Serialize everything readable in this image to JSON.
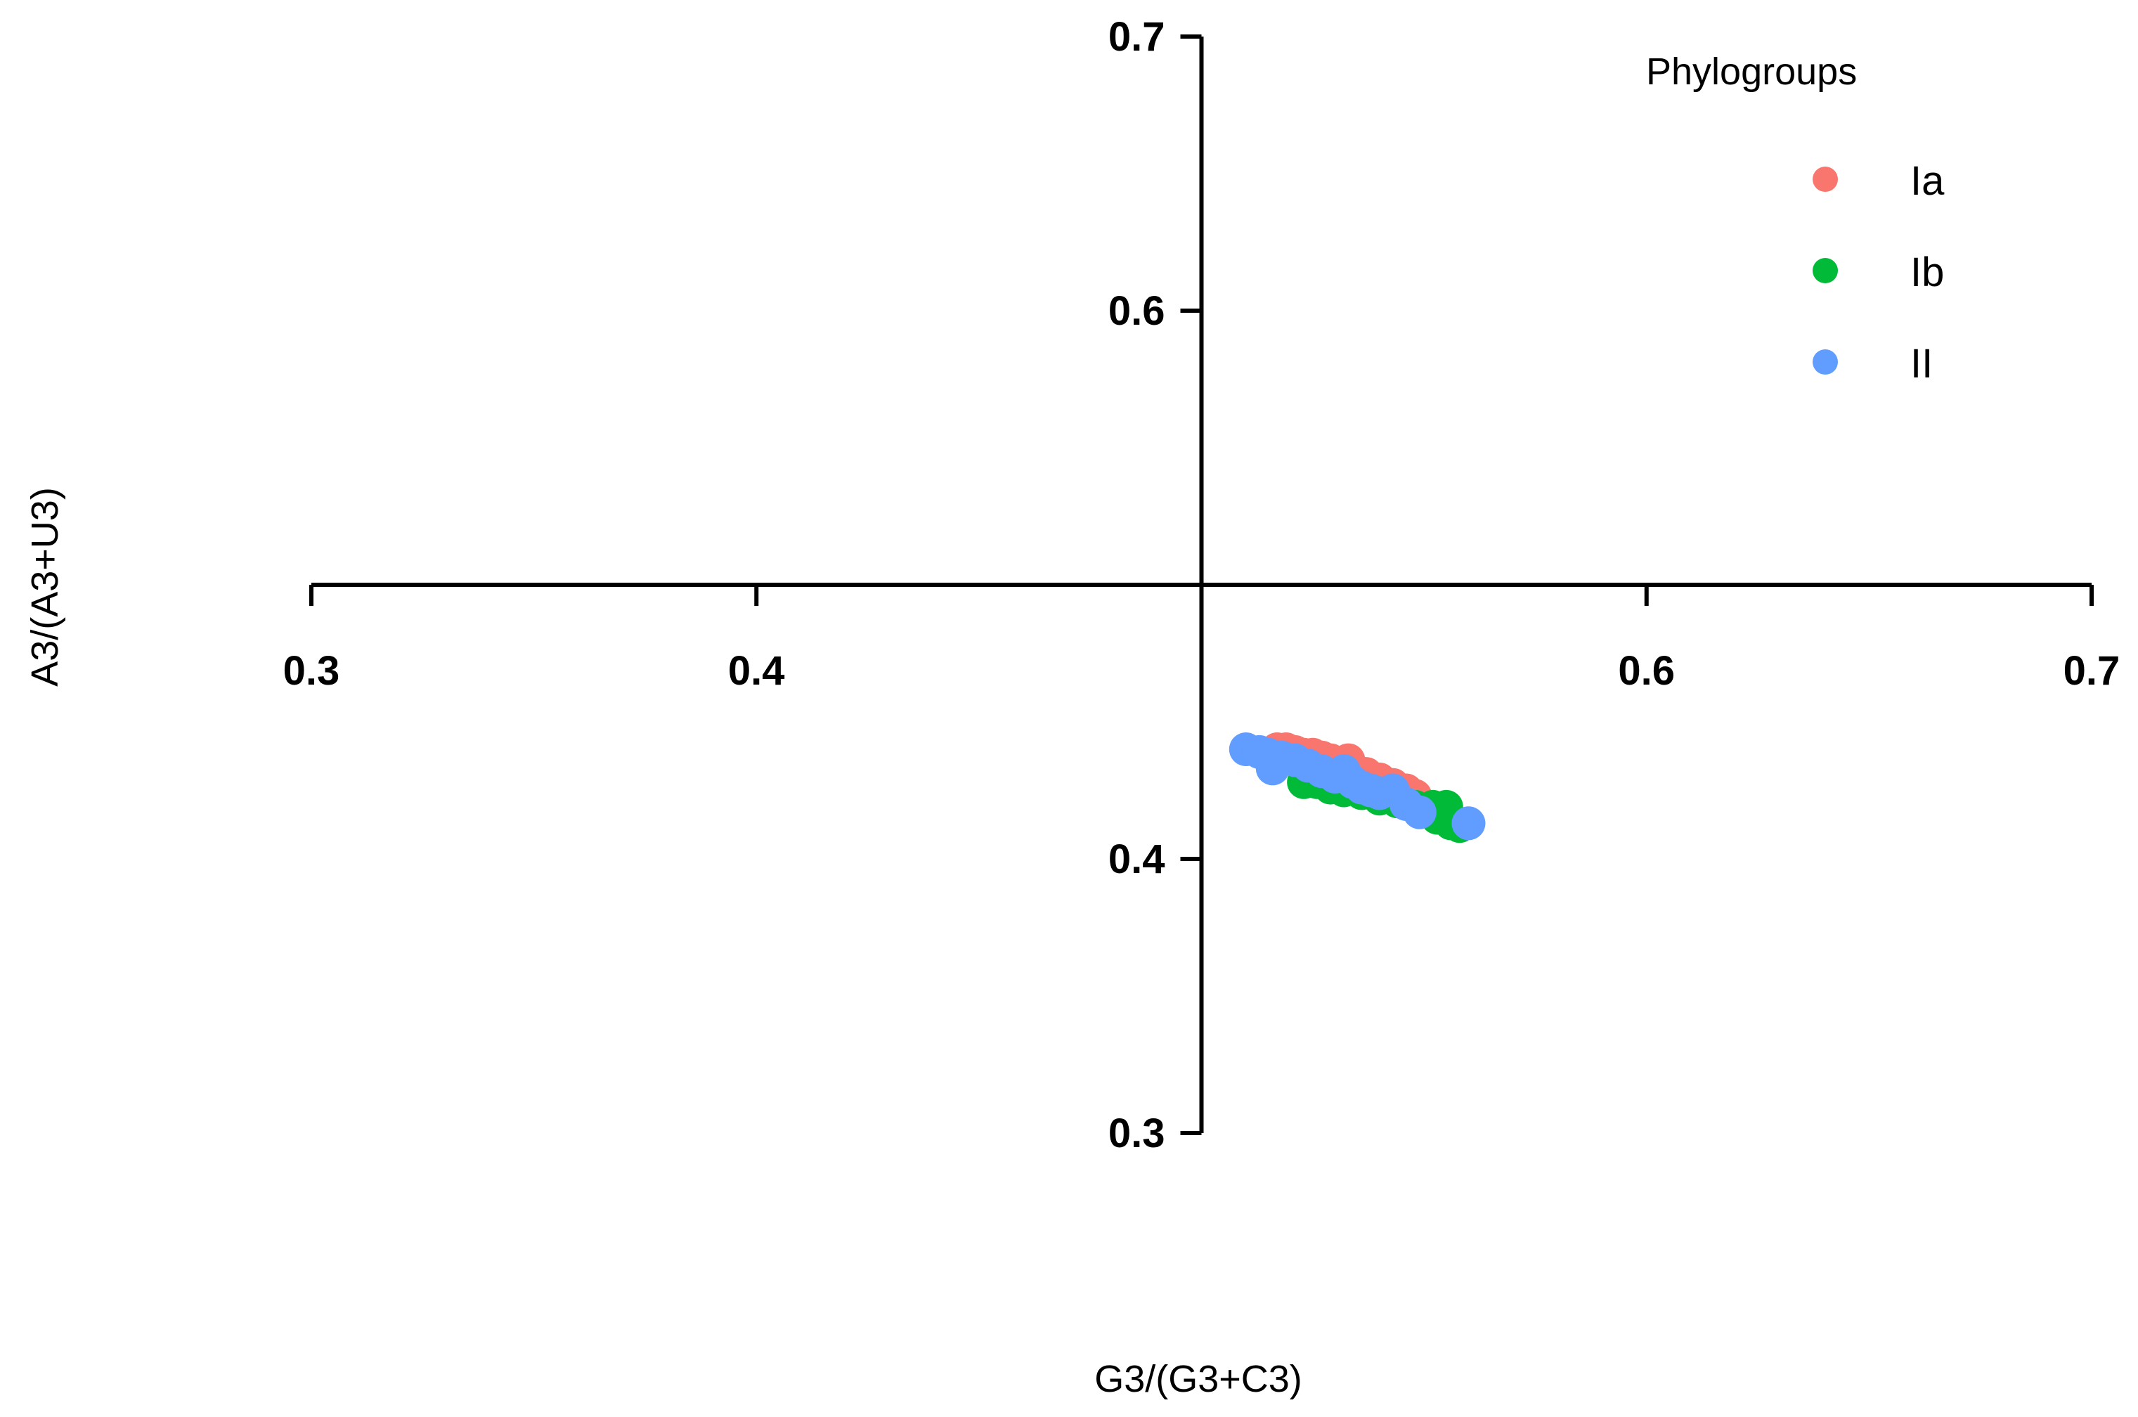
{
  "chart_data": {
    "type": "scatter",
    "xlabel": "G3/(G3+C3)",
    "ylabel": "A3/(A3+U3)",
    "xlim": [
      0.3,
      0.7
    ],
    "ylim": [
      0.3,
      0.7
    ],
    "x_ticks": [
      "0.3",
      "0.4",
      "0.6",
      "0.7"
    ],
    "y_ticks": [
      "0.7",
      "0.6",
      "0.4",
      "0.3"
    ],
    "axes_cross_at": [
      0.5,
      0.5
    ],
    "grid": false,
    "legend": {
      "title": "Phylogroups",
      "placement": "top-right"
    },
    "series": [
      {
        "name": "Ia",
        "color": "#F8766D",
        "points": [
          [
            0.517,
            0.44
          ],
          [
            0.519,
            0.44
          ],
          [
            0.521,
            0.439
          ],
          [
            0.523,
            0.438
          ],
          [
            0.525,
            0.438
          ],
          [
            0.527,
            0.437
          ],
          [
            0.529,
            0.436
          ],
          [
            0.531,
            0.435
          ],
          [
            0.534,
            0.433
          ],
          [
            0.537,
            0.431
          ],
          [
            0.54,
            0.429
          ],
          [
            0.543,
            0.427
          ],
          [
            0.546,
            0.425
          ],
          [
            0.548,
            0.423
          ],
          [
            0.533,
            0.436
          ]
        ]
      },
      {
        "name": "Ib",
        "color": "#00BA38",
        "points": [
          [
            0.523,
            0.428
          ],
          [
            0.526,
            0.428
          ],
          [
            0.529,
            0.426
          ],
          [
            0.532,
            0.425
          ],
          [
            0.536,
            0.424
          ],
          [
            0.54,
            0.422
          ],
          [
            0.544,
            0.421
          ],
          [
            0.548,
            0.419
          ],
          [
            0.552,
            0.417
          ],
          [
            0.555,
            0.416
          ],
          [
            0.552,
            0.419
          ],
          [
            0.555,
            0.419
          ],
          [
            0.553,
            0.415
          ],
          [
            0.556,
            0.413
          ],
          [
            0.558,
            0.412
          ]
        ]
      },
      {
        "name": "II",
        "color": "#619CFF",
        "points": [
          [
            0.51,
            0.44
          ],
          [
            0.513,
            0.439
          ],
          [
            0.515,
            0.438
          ],
          [
            0.516,
            0.433
          ],
          [
            0.518,
            0.437
          ],
          [
            0.521,
            0.436
          ],
          [
            0.524,
            0.434
          ],
          [
            0.527,
            0.432
          ],
          [
            0.53,
            0.43
          ],
          [
            0.532,
            0.432
          ],
          [
            0.534,
            0.428
          ],
          [
            0.536,
            0.426
          ],
          [
            0.538,
            0.425
          ],
          [
            0.54,
            0.424
          ],
          [
            0.543,
            0.425
          ],
          [
            0.546,
            0.42
          ],
          [
            0.549,
            0.417
          ],
          [
            0.56,
            0.413
          ]
        ]
      }
    ]
  }
}
